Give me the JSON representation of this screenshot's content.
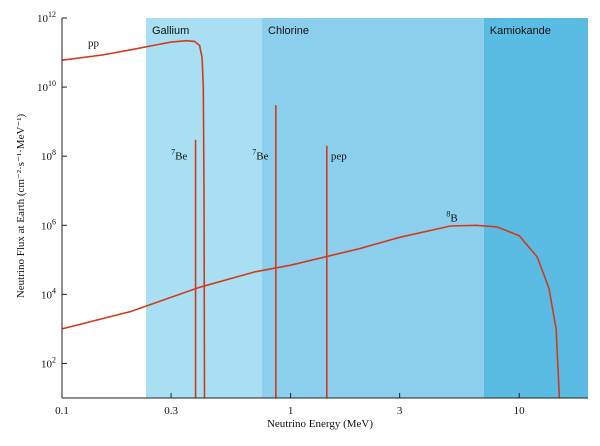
{
  "chart_data": {
    "type": "line",
    "xscale": "log",
    "yscale": "log",
    "xlim": [
      0.1,
      20
    ],
    "ylim": [
      10,
      1000000000000.0
    ],
    "xlabel": "Neutrino Energy (MeV)",
    "ylabel": "Neutrino Flux at Earth (cm⁻²·s⁻¹·MeV⁻¹)",
    "xticks": [
      {
        "value": 0.1,
        "label": "0.1"
      },
      {
        "value": 0.3,
        "label": "0.3"
      },
      {
        "value": 1,
        "label": "1"
      },
      {
        "value": 3,
        "label": "3"
      },
      {
        "value": 10,
        "label": "10"
      }
    ],
    "yticks": [
      {
        "value": 100,
        "base": "10",
        "exp": "2"
      },
      {
        "value": 10000,
        "base": "10",
        "exp": "4"
      },
      {
        "value": 1000000,
        "base": "10",
        "exp": "6"
      },
      {
        "value": 100000000,
        "base": "10",
        "exp": "8"
      },
      {
        "value": 10000000000,
        "base": "10",
        "exp": "10"
      },
      {
        "value": 1000000000000,
        "base": "10",
        "exp": "12"
      }
    ],
    "regions": [
      {
        "name": "Gallium",
        "from": 0.233,
        "to": 0.75,
        "color": "#a8dff2"
      },
      {
        "name": "Chlorine",
        "from": 0.75,
        "to": 7.0,
        "color": "#8ccfec"
      },
      {
        "name": "Kamiokande",
        "from": 7.0,
        "to": 20,
        "color": "#5bbce3"
      }
    ],
    "series": [
      {
        "name": "pp",
        "label_sup": "",
        "label_main": "pp",
        "label_at": [
          0.13,
          150000000000.0
        ],
        "points": [
          [
            0.1,
            60000000000.0
          ],
          [
            0.15,
            85000000000.0
          ],
          [
            0.2,
            120000000000.0
          ],
          [
            0.25,
            160000000000.0
          ],
          [
            0.3,
            200000000000.0
          ],
          [
            0.35,
            220000000000.0
          ],
          [
            0.38,
            210000000000.0
          ],
          [
            0.4,
            160000000000.0
          ],
          [
            0.41,
            70000000000.0
          ],
          [
            0.415,
            10000000000.0
          ],
          [
            0.418,
            10000000.0
          ],
          [
            0.42,
            10
          ]
        ]
      },
      {
        "name": "8B",
        "label_sup": "8",
        "label_main": "B",
        "label_at": [
          4.8,
          1300000.0
        ],
        "points": [
          [
            0.1,
            1000.0
          ],
          [
            0.2,
            3200.0
          ],
          [
            0.4,
            16000.0
          ],
          [
            0.7,
            45000.0
          ],
          [
            1,
            70000.0
          ],
          [
            2,
            210000.0
          ],
          [
            3,
            450000.0
          ],
          [
            5,
            950000.0
          ],
          [
            6.5,
            1000000.0
          ],
          [
            8,
            900000.0
          ],
          [
            10,
            500000.0
          ],
          [
            12,
            120000.0
          ],
          [
            13.5,
            15000.0
          ],
          [
            14.5,
            1000.0
          ],
          [
            15,
            10
          ]
        ]
      }
    ],
    "lines": [
      {
        "name": "7Be",
        "label_sup": "7",
        "label_main": "Be",
        "energy": 0.384,
        "flux": 300000000.0,
        "label_at": [
          0.3,
          80000000.0
        ]
      },
      {
        "name": "7Be",
        "label_sup": "7",
        "label_main": "Be",
        "energy": 0.862,
        "flux": 3000000000.0,
        "label_at": [
          0.68,
          80000000.0
        ]
      },
      {
        "name": "pep",
        "label_sup": "",
        "label_main": "pep",
        "energy": 1.44,
        "flux": 200000000.0,
        "label_at": [
          1.5,
          80000000.0
        ]
      }
    ],
    "colors": {
      "curve": "#d23a1e",
      "axis": "#222222",
      "background": "#ffffff"
    }
  }
}
